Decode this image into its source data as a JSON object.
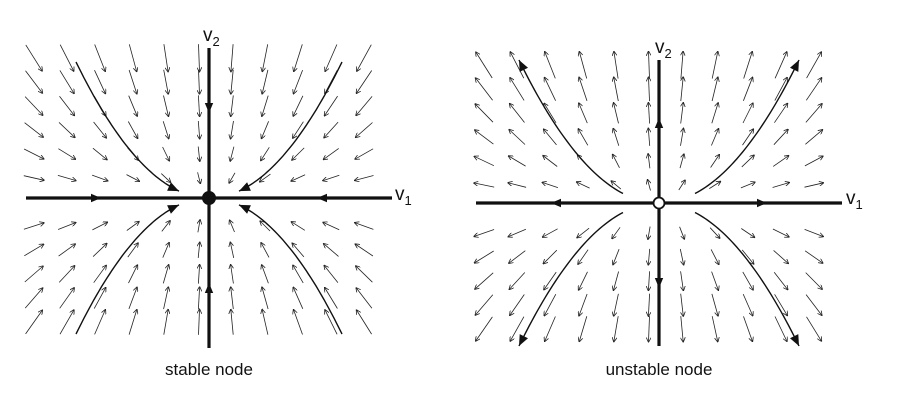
{
  "panels": [
    {
      "id": "stable",
      "caption": "stable node",
      "axis_v1": {
        "main": "v",
        "sub": "1"
      },
      "axis_v2": {
        "main": "v",
        "sub": "2"
      },
      "equilibrium": "filled",
      "flow": "inward"
    },
    {
      "id": "unstable",
      "caption": "unstable node",
      "axis_v1": {
        "main": "v",
        "sub": "1"
      },
      "axis_v2": {
        "main": "v",
        "sub": "2"
      },
      "equilibrium": "open",
      "flow": "outward"
    }
  ],
  "colors": {
    "ink": "#111111",
    "field": "#222222",
    "background": "#ffffff"
  }
}
